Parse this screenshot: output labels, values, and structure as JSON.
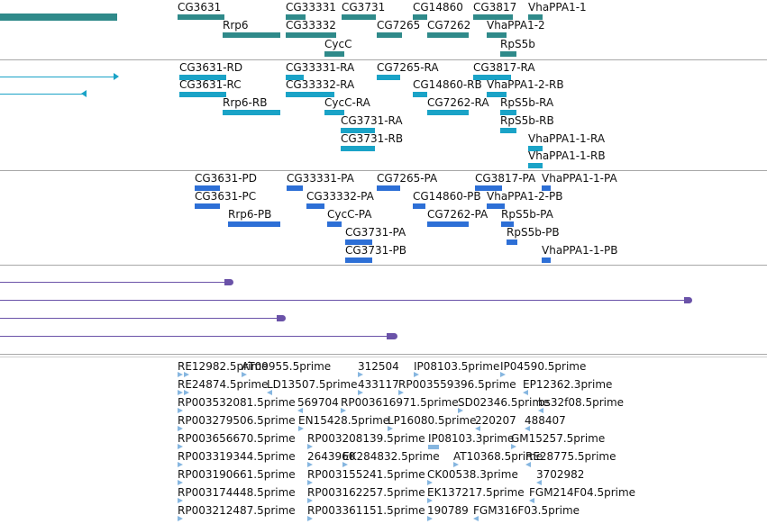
{
  "gene_track": {
    "labels": [
      "CG3631",
      "CG33331",
      "CG3731",
      "CG14860",
      "CG3817",
      "VhaPPA1-1",
      "Rrp6",
      "CG33332",
      "CG7265",
      "CG7262",
      "VhaPPA1-2",
      "CycC",
      "RpS5b"
    ]
  },
  "transcript_track": {
    "labels": [
      "CG3631-RD",
      "CG33331-RA",
      "CG7265-RA",
      "CG3817-RA",
      "CG3631-RC",
      "CG33332-RA",
      "CG14860-RB",
      "VhaPPA1-2-RB",
      "Rrp6-RB",
      "CycC-RA",
      "CG7262-RA",
      "RpS5b-RA",
      "CG3731-RA",
      "RpS5b-RB",
      "CG3731-RB",
      "VhaPPA1-1-RA",
      "VhaPPA1-1-RB"
    ]
  },
  "protein_track": {
    "labels": [
      "CG3631-PD",
      "CG33331-PA",
      "CG7265-PA",
      "CG3817-PA",
      "VhaPPA1-1-PA",
      "CG3631-PC",
      "CG33332-PA",
      "CG14860-PB",
      "VhaPPA1-2-PB",
      "Rrp6-PB",
      "CycC-PA",
      "CG7262-PA",
      "RpS5b-PA",
      "CG3731-PA",
      "RpS5b-PB",
      "CG3731-PB",
      "VhaPPA1-1-PB"
    ]
  },
  "est_track": {
    "labels": [
      "RE12982.5prime",
      "AT09955.5prime",
      "312504",
      "IP08103.5prime",
      "IP04590.5prime",
      "RE24874.5prime",
      "LD13507.5prime",
      "433117",
      "RP003559396.5prime",
      "EP12362.3prime",
      "RP003532081.5prime",
      "569704",
      "RP003616971.5prime",
      "SD02346.5prime",
      "bs32f08.5prime",
      "RP003279506.5prime",
      "EN15428.5prime",
      "LP16080.5prime",
      "220207",
      "488407",
      "RP003656670.5prime",
      "RP003208139.5prime",
      "IP08103.3prime",
      "GM15257.5prime",
      "RP003319344.5prime",
      "2643960",
      "EK284832.5prime",
      "AT10368.5prime",
      "RE28775.5prime",
      "RP003190661.5prime",
      "RP003155241.5prime",
      "CK00538.3prime",
      "3702982",
      "RP003174448.5prime",
      "RP003162257.5prime",
      "EK137217.5prime",
      "FGM214F04.5prime",
      "RP003212487.5prime",
      "RP003361151.5prime",
      "190789",
      "FGM316F03.5prime"
    ]
  },
  "colors": {
    "gene": "#2f8a8a",
    "transcript": "#1aa3c7",
    "protein": "#2d6fd6",
    "alignment": "#6a52a8",
    "est": "#86b6e0",
    "separator": "#a8a8a8"
  }
}
